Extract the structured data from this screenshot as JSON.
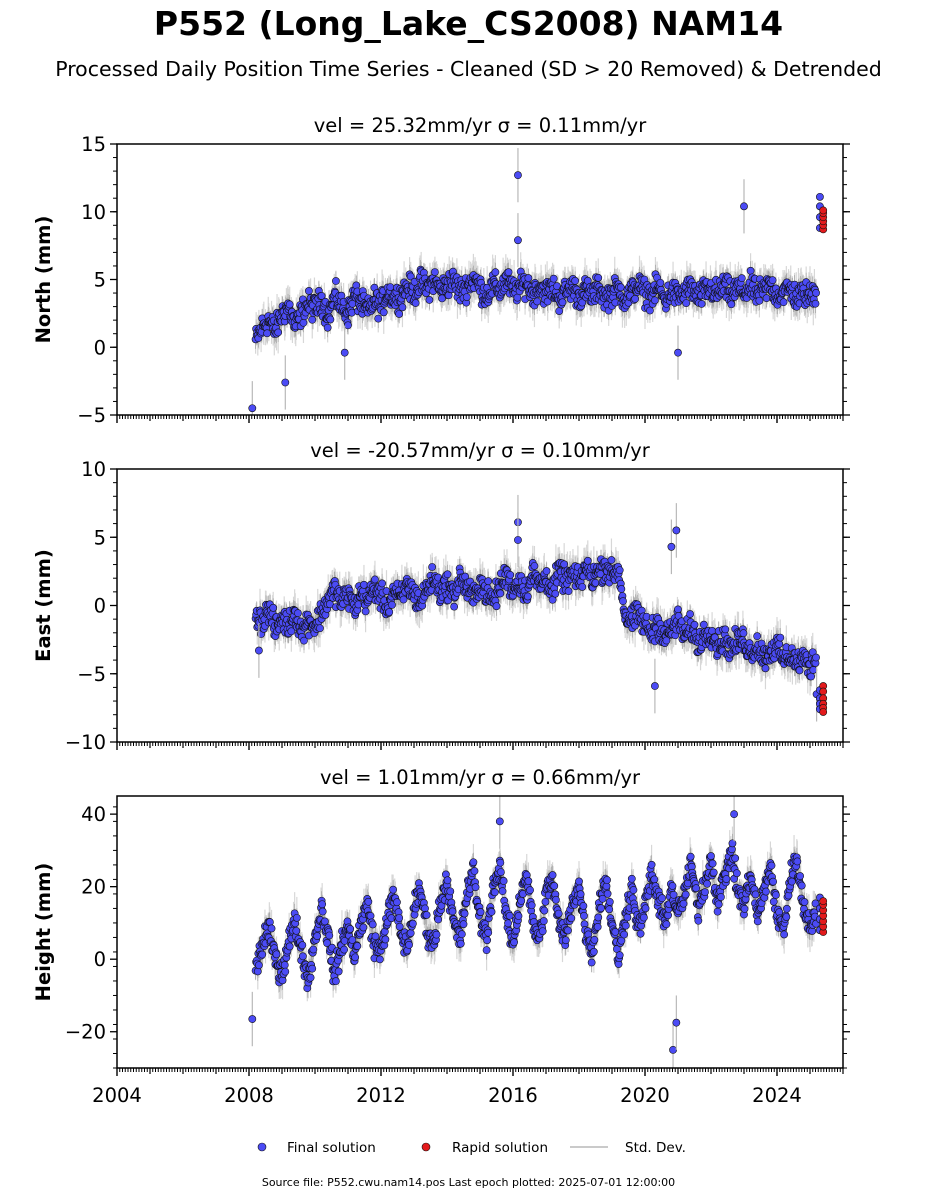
{
  "title": "P552 (Long_Lake_CS2008) NAM14",
  "subtitle": "Processed Daily Position Time Series - Cleaned (SD > 20 Removed) & Detrended",
  "footer": "Source file: P552.cwu.nam14.pos  Last epoch plotted: 2025-07-01 12:00:00",
  "legend": {
    "final": "Final solution",
    "rapid": "Rapid solution",
    "std": "Std. Dev.",
    "placement": "bottom-center"
  },
  "colors": {
    "final": "#4b4bf5",
    "rapid": "#e31a1c",
    "std": "#b8b8b8",
    "edge": "#111111"
  },
  "chart_data": [
    {
      "type": "scatter",
      "title": "vel = 25.32mm/yr   σ = 0.11mm/yr",
      "ylabel": "North (mm)",
      "xlim": [
        2004,
        2026
      ],
      "ylim": [
        -5,
        15
      ],
      "yticks": [
        -5,
        0,
        5,
        10,
        15
      ],
      "xticks": [
        2004,
        2008,
        2012,
        2016,
        2020,
        2024
      ],
      "show_xtick_labels": false,
      "final_solution": {
        "x": [
          2008.2,
          2008.4,
          2008.6,
          2008.8,
          2009.0,
          2009.2,
          2009.4,
          2009.6,
          2009.8,
          2010.0,
          2010.2,
          2010.4,
          2010.6,
          2010.8,
          2011.0,
          2011.2,
          2011.4,
          2011.6,
          2011.8,
          2012.0,
          2012.2,
          2012.4,
          2012.6,
          2012.8,
          2013.0,
          2013.2,
          2013.4,
          2013.6,
          2013.8,
          2014.0,
          2014.2,
          2014.4,
          2014.6,
          2014.8,
          2015.0,
          2015.2,
          2015.4,
          2015.6,
          2015.8,
          2016.0,
          2016.2,
          2016.4,
          2016.6,
          2016.8,
          2017.0,
          2017.2,
          2017.4,
          2017.6,
          2017.8,
          2018.0,
          2018.2,
          2018.4,
          2018.6,
          2018.8,
          2019.0,
          2019.2,
          2019.4,
          2019.6,
          2019.8,
          2020.0,
          2020.2,
          2020.4,
          2020.6,
          2020.8,
          2021.0,
          2021.2,
          2021.4,
          2021.6,
          2021.8,
          2022.0,
          2022.2,
          2022.4,
          2022.6,
          2022.8,
          2023.0,
          2023.2,
          2023.4,
          2023.6,
          2023.8,
          2024.0,
          2024.2,
          2024.4,
          2024.6,
          2024.8,
          2025.0,
          2025.2
        ],
        "y": [
          0.5,
          1.5,
          2.0,
          1.2,
          2.5,
          3.0,
          1.5,
          2.6,
          3.2,
          2.8,
          3.5,
          2.2,
          3.8,
          3.0,
          2.5,
          3.9,
          3.2,
          2.6,
          3.5,
          3.0,
          4.2,
          3.6,
          3.8,
          4.5,
          4.0,
          4.8,
          4.3,
          5.0,
          4.2,
          4.6,
          4.9,
          4.1,
          4.5,
          5.1,
          4.4,
          3.8,
          4.6,
          4.2,
          5.0,
          4.1,
          4.4,
          4.8,
          3.9,
          4.5,
          4.0,
          4.4,
          3.6,
          4.1,
          4.5,
          3.7,
          4.2,
          3.8,
          4.4,
          3.6,
          4.0,
          4.3,
          3.5,
          4.1,
          4.6,
          4.0,
          3.8,
          4.5,
          3.4,
          4.2,
          3.7,
          4.0,
          4.4,
          3.6,
          4.1,
          4.3,
          3.9,
          4.6,
          3.8,
          4.4,
          4.0,
          4.5,
          3.9,
          4.2,
          4.6,
          3.8,
          4.1,
          4.3,
          3.6,
          4.0,
          3.7,
          4.2
        ],
        "outliers_x": [
          2008.1,
          2009.1,
          2010.9,
          2016.15,
          2016.15,
          2021.0,
          2023.0
        ],
        "outliers_y": [
          -4.5,
          -2.6,
          -0.4,
          12.7,
          7.9,
          -0.4,
          10.4
        ]
      },
      "rapid_solution": {
        "x": [
          2025.4,
          2025.4,
          2025.4,
          2025.4,
          2025.4,
          2025.4
        ],
        "y": [
          8.7,
          9.0,
          9.3,
          9.6,
          9.9,
          10.1
        ]
      },
      "final_cluster_end": {
        "x": [
          2025.3,
          2025.3,
          2025.3,
          2025.3
        ],
        "y": [
          8.8,
          9.6,
          10.4,
          11.1
        ]
      }
    },
    {
      "type": "scatter",
      "title": "vel = -20.57mm/yr   σ = 0.10mm/yr",
      "ylabel": "East (mm)",
      "xlim": [
        2004,
        2026
      ],
      "ylim": [
        -10,
        10
      ],
      "yticks": [
        -10,
        -5,
        0,
        5,
        10
      ],
      "xticks": [
        2004,
        2008,
        2012,
        2016,
        2020,
        2024
      ],
      "show_xtick_labels": false,
      "final_solution": {
        "x": [
          2008.2,
          2008.4,
          2008.6,
          2008.8,
          2009.0,
          2009.2,
          2009.4,
          2009.6,
          2009.8,
          2010.0,
          2010.2,
          2010.4,
          2010.6,
          2010.8,
          2011.0,
          2011.2,
          2011.4,
          2011.6,
          2011.8,
          2012.0,
          2012.2,
          2012.4,
          2012.6,
          2012.8,
          2013.0,
          2013.2,
          2013.4,
          2013.6,
          2013.8,
          2014.0,
          2014.2,
          2014.4,
          2014.6,
          2014.8,
          2015.0,
          2015.2,
          2015.4,
          2015.6,
          2015.8,
          2016.0,
          2016.2,
          2016.4,
          2016.6,
          2016.8,
          2017.0,
          2017.2,
          2017.4,
          2017.6,
          2017.8,
          2018.0,
          2018.2,
          2018.4,
          2018.6,
          2018.8,
          2019.0,
          2019.2,
          2019.4,
          2019.6,
          2019.8,
          2020.0,
          2020.2,
          2020.4,
          2020.6,
          2020.8,
          2021.0,
          2021.2,
          2021.4,
          2021.6,
          2021.8,
          2022.0,
          2022.2,
          2022.4,
          2022.6,
          2022.8,
          2023.0,
          2023.2,
          2023.4,
          2023.6,
          2023.8,
          2024.0,
          2024.2,
          2024.4,
          2024.6,
          2024.8,
          2025.0,
          2025.2
        ],
        "y": [
          -0.6,
          -1.2,
          -0.3,
          -1.8,
          -0.9,
          -1.5,
          -0.4,
          -2.0,
          -1.0,
          -1.6,
          -0.5,
          0.4,
          1.2,
          0.2,
          0.9,
          -0.2,
          1.0,
          0.3,
          1.4,
          0.6,
          -0.1,
          1.1,
          0.4,
          1.6,
          0.8,
          0.2,
          1.3,
          2.0,
          1.0,
          1.5,
          0.7,
          2.1,
          1.2,
          0.6,
          1.7,
          0.9,
          0.3,
          1.4,
          2.2,
          1.1,
          1.8,
          0.9,
          2.4,
          1.5,
          2.1,
          1.0,
          2.6,
          1.7,
          2.3,
          1.6,
          2.8,
          2.0,
          2.5,
          2.9,
          2.2,
          2.7,
          -0.8,
          -1.2,
          -0.6,
          -1.5,
          -2.0,
          -1.3,
          -2.4,
          -1.8,
          -1.1,
          -2.2,
          -1.6,
          -2.8,
          -2.1,
          -1.9,
          -3.0,
          -2.4,
          -3.2,
          -2.7,
          -2.5,
          -3.5,
          -2.9,
          -3.8,
          -3.3,
          -3.0,
          -4.0,
          -3.6,
          -4.2,
          -3.9,
          -4.5,
          -3.7
        ],
        "outliers_x": [
          2008.3,
          2016.15,
          2016.15,
          2020.8,
          2020.95,
          2020.3,
          2025.2
        ],
        "outliers_y": [
          -3.3,
          6.1,
          4.8,
          4.3,
          5.5,
          -5.9,
          -6.5
        ]
      },
      "rapid_solution": {
        "x": [
          2025.4,
          2025.4,
          2025.4,
          2025.4,
          2025.4,
          2025.4
        ],
        "y": [
          -5.9,
          -6.3,
          -6.8,
          -7.2,
          -7.5,
          -7.8
        ]
      },
      "final_cluster_end": {
        "x": [
          2025.3,
          2025.3,
          2025.3,
          2025.3
        ],
        "y": [
          -6.2,
          -6.8,
          -7.2,
          -7.6
        ]
      }
    },
    {
      "type": "scatter",
      "title": "vel = 1.01mm/yr   σ = 0.66mm/yr",
      "ylabel": "Height (mm)",
      "xlim": [
        2004,
        2026
      ],
      "ylim": [
        -30,
        45
      ],
      "yticks": [
        -20,
        0,
        20,
        40
      ],
      "xticks": [
        2004,
        2008,
        2012,
        2016,
        2020,
        2024
      ],
      "show_xtick_labels": true,
      "final_solution": {
        "x": [
          2008.2,
          2008.4,
          2008.6,
          2008.8,
          2009.0,
          2009.2,
          2009.4,
          2009.6,
          2009.8,
          2010.0,
          2010.2,
          2010.4,
          2010.6,
          2010.8,
          2011.0,
          2011.2,
          2011.4,
          2011.6,
          2011.8,
          2012.0,
          2012.2,
          2012.4,
          2012.6,
          2012.8,
          2013.0,
          2013.2,
          2013.4,
          2013.6,
          2013.8,
          2014.0,
          2014.2,
          2014.4,
          2014.6,
          2014.8,
          2015.0,
          2015.2,
          2015.4,
          2015.6,
          2015.8,
          2016.0,
          2016.2,
          2016.4,
          2016.6,
          2016.8,
          2017.0,
          2017.2,
          2017.4,
          2017.6,
          2017.8,
          2018.0,
          2018.2,
          2018.4,
          2018.6,
          2018.8,
          2019.0,
          2019.2,
          2019.4,
          2019.6,
          2019.8,
          2020.0,
          2020.2,
          2020.4,
          2020.6,
          2020.8,
          2021.0,
          2021.2,
          2021.4,
          2021.6,
          2021.8,
          2022.0,
          2022.2,
          2022.4,
          2022.6,
          2022.8,
          2023.0,
          2023.2,
          2023.4,
          2023.6,
          2023.8,
          2024.0,
          2024.2,
          2024.4,
          2024.6,
          2024.8,
          2025.0,
          2025.2
        ],
        "y": [
          -3,
          4,
          8,
          0,
          -4,
          5,
          10,
          2,
          -6,
          6,
          14,
          6,
          -5,
          4,
          9,
          1,
          10,
          15,
          4,
          2,
          12,
          17,
          7,
          3,
          14,
          19,
          8,
          4,
          16,
          22,
          10,
          5,
          18,
          24,
          11,
          6,
          20,
          25,
          12,
          4,
          16,
          24,
          10,
          5,
          18,
          22,
          9,
          6,
          16,
          20,
          8,
          2,
          14,
          22,
          10,
          0,
          12,
          20,
          8,
          14,
          24,
          16,
          10,
          20,
          12,
          18,
          26,
          14,
          20,
          28,
          16,
          22,
          30,
          20,
          14,
          24,
          12,
          18,
          26,
          12,
          8,
          22,
          28,
          14,
          10,
          12
        ],
        "outliers_x": [
          2008.1,
          2015.6,
          2020.85,
          2020.95,
          2022.7
        ],
        "outliers_y": [
          -16.5,
          38,
          -25,
          -17.5,
          40
        ]
      },
      "rapid_solution": {
        "x": [
          2025.4,
          2025.4,
          2025.4,
          2025.4,
          2025.4,
          2025.4,
          2025.4
        ],
        "y": [
          7.5,
          9,
          10.5,
          12,
          13.5,
          15,
          16
        ]
      },
      "final_cluster_end": {
        "x": [
          2025.3,
          2025.3,
          2025.3,
          2025.3
        ],
        "y": [
          8,
          11,
          14,
          17
        ]
      }
    }
  ]
}
